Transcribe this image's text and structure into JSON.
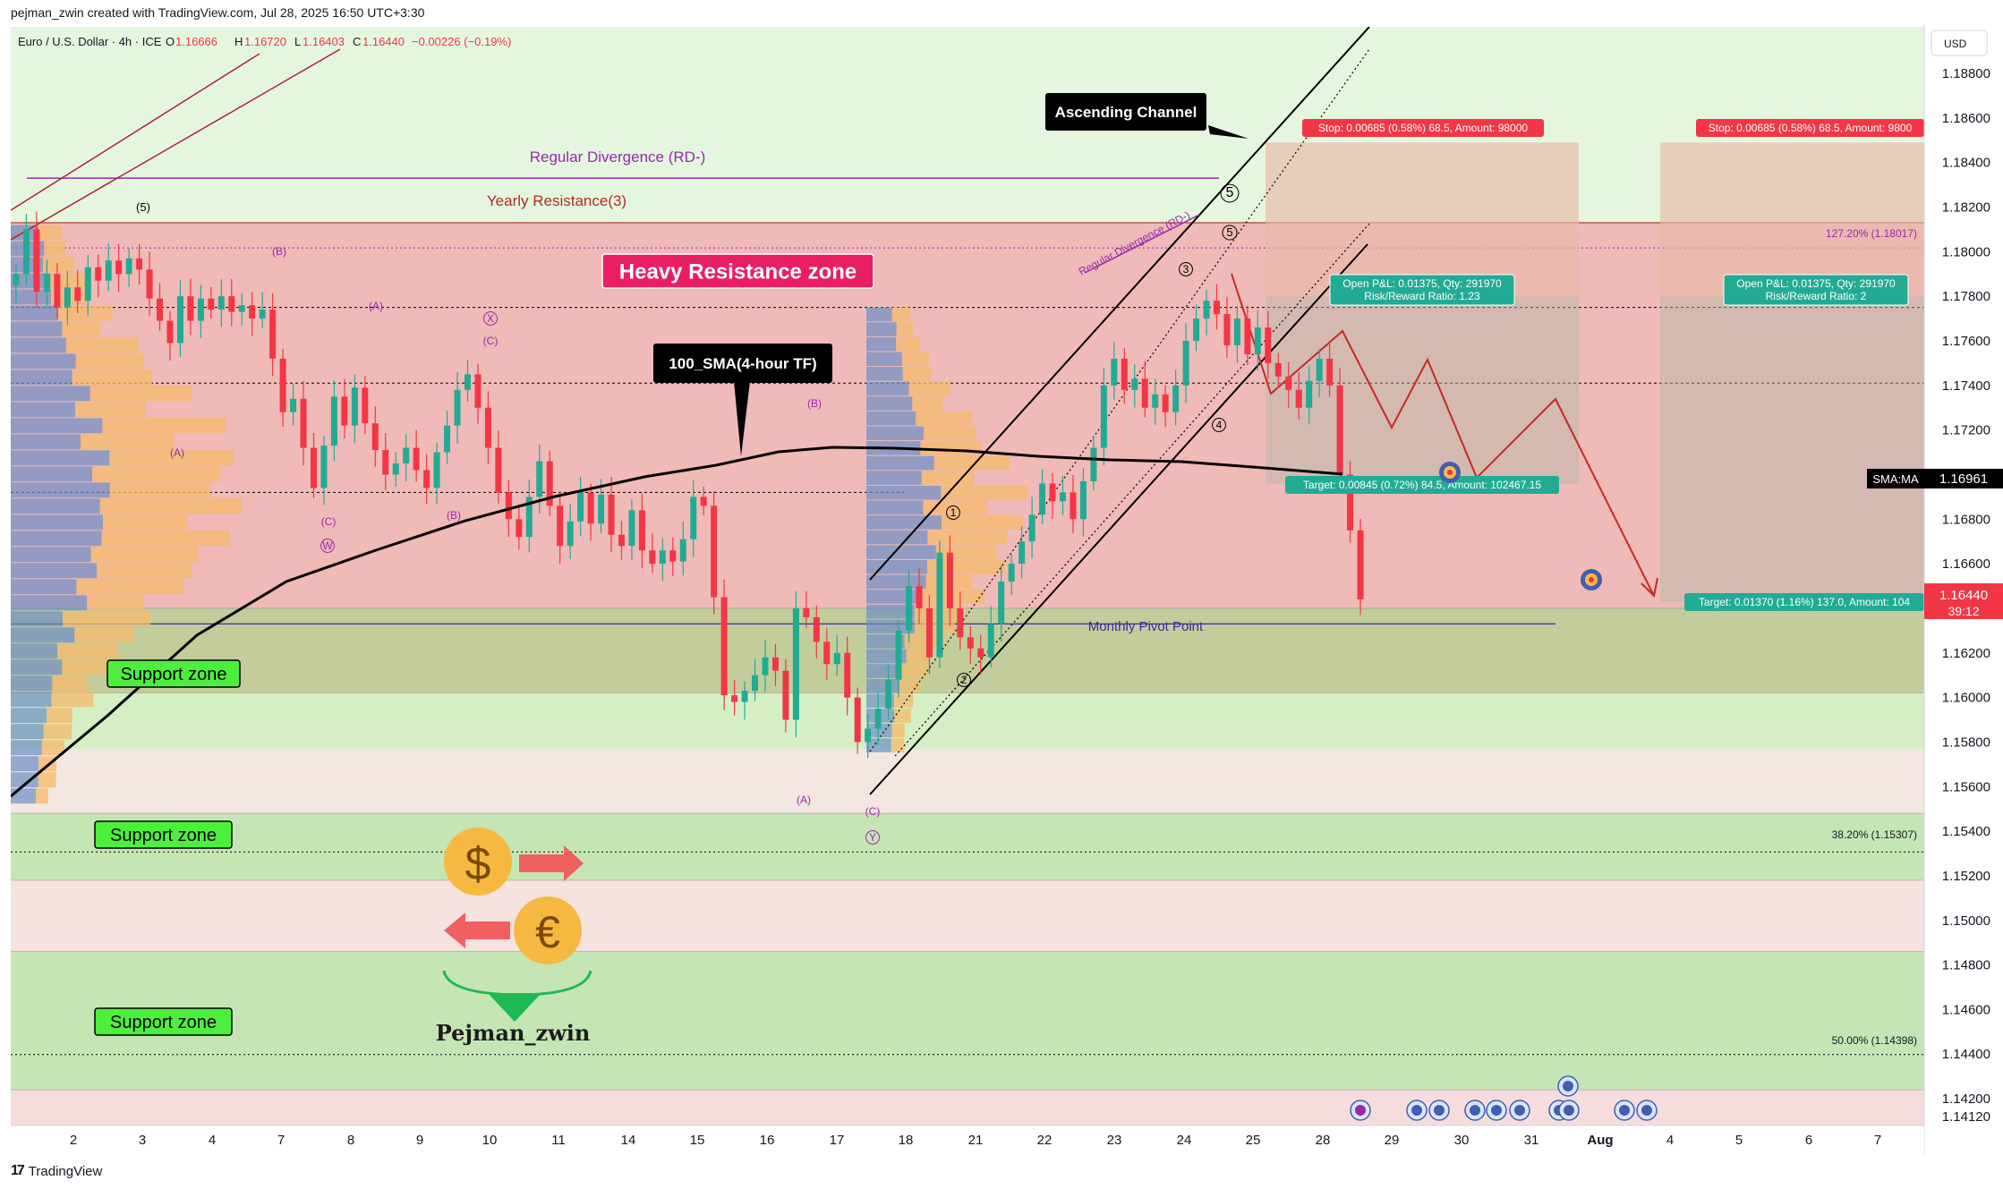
{
  "header": {
    "credit": "pejman_zwin created with TradingView.com, Jul 28, 2025 16:50 UTC+3:30"
  },
  "legend": {
    "symbol": "Euro / U.S. Dollar · 4h · ICE",
    "open_label": "O",
    "open": "1.16666",
    "high_label": "H",
    "high": "1.16720",
    "low_label": "L",
    "low": "1.16403",
    "close_label": "C",
    "close": "1.16440",
    "change": "−0.00226 (−0.19%)"
  },
  "price_axis": {
    "currency": "USD",
    "current_price": "1.16440",
    "countdown": "39:12",
    "sma_label": "SMA:MA",
    "sma_value": "1.16961"
  },
  "footer": {
    "brand": "TradingView"
  },
  "colors": {
    "resistance_zone": "#f0b3b3",
    "support_zone": "#c5e6b4",
    "background_green": "#e4f7de",
    "bull_candle": "#22ab94",
    "bear_candle": "#f23645",
    "volume_profile_blue": "#6c8fc6",
    "volume_profile_orange": "#f5b96b",
    "sma_line": "#000000",
    "channel_line": "#000000",
    "label_red": "#f23645",
    "label_teal": "#22ab94"
  },
  "chart_data": {
    "type": "candlestick",
    "timeframe": "4h",
    "y_range": [
      1.1405,
      1.1905
    ],
    "x_ticks": [
      "2",
      "3",
      "4",
      "7",
      "8",
      "9",
      "10",
      "11",
      "14",
      "15",
      "16",
      "17",
      "18",
      "21",
      "22",
      "23",
      "24",
      "25",
      "28",
      "29",
      "30",
      "31",
      "Aug",
      "4",
      "5",
      "6",
      "7"
    ],
    "y_ticks": [
      "1.18800",
      "1.18600",
      "1.18400",
      "1.18200",
      "1.18000",
      "1.17800",
      "1.17600",
      "1.17400",
      "1.17200",
      "1.17000",
      "1.16800",
      "1.16600",
      "1.16400",
      "1.16200",
      "1.16000",
      "1.15800",
      "1.15600",
      "1.15400",
      "1.15200",
      "1.15000",
      "1.14800",
      "1.14600",
      "1.14400",
      "1.14200",
      "1.14120"
    ],
    "candles_close_path": [
      1.179,
      1.181,
      1.1782,
      1.179,
      1.1775,
      1.1784,
      1.1778,
      1.1793,
      1.1787,
      1.1796,
      1.179,
      1.1797,
      1.1792,
      1.1779,
      1.1769,
      1.1759,
      1.178,
      1.1769,
      1.1779,
      1.1774,
      1.178,
      1.1773,
      1.1776,
      1.177,
      1.1774,
      1.1752,
      1.1728,
      1.1734,
      1.1712,
      1.1694,
      1.1713,
      1.1735,
      1.1722,
      1.1739,
      1.1723,
      1.1711,
      1.17,
      1.1705,
      1.1712,
      1.1702,
      1.1694,
      1.171,
      1.1722,
      1.1738,
      1.1745,
      1.173,
      1.1712,
      1.1692,
      1.168,
      1.1672,
      1.169,
      1.1706,
      1.1686,
      1.1668,
      1.1679,
      1.1692,
      1.1678,
      1.1691,
      1.1673,
      1.1668,
      1.1684,
      1.1666,
      1.166,
      1.1666,
      1.1661,
      1.1671,
      1.169,
      1.1686,
      1.1645,
      1.1601,
      1.1598,
      1.1603,
      1.161,
      1.1618,
      1.1612,
      1.159,
      1.164,
      1.1636,
      1.1625,
      1.1615,
      1.162,
      1.16,
      1.158,
      1.1586,
      1.1595,
      1.1608,
      1.163,
      1.165,
      1.164,
      1.1618,
      1.1665,
      1.164,
      1.1627,
      1.1622,
      1.1618,
      1.1633,
      1.1652,
      1.166,
      1.167,
      1.1682,
      1.1696,
      1.1688,
      1.1692,
      1.168,
      1.1697,
      1.1712,
      1.174,
      1.1752,
      1.1738,
      1.1743,
      1.173,
      1.1736,
      1.1728,
      1.174,
      1.176,
      1.177,
      1.1778,
      1.1772,
      1.1758,
      1.177,
      1.1754,
      1.1766,
      1.175,
      1.1744,
      1.1738,
      1.173,
      1.1742,
      1.1752,
      1.174,
      1.17,
      1.1675,
      1.1644
    ],
    "indicators": [
      {
        "name": "100_SMA(4-hour TF)",
        "type": "line"
      }
    ],
    "levels": [
      {
        "label": "Yearly Resistance(3)",
        "price": 1.1813
      },
      {
        "label": "Monthly Pivot Point",
        "price": 1.1633
      },
      {
        "label": "127.20% (1.18017)",
        "price": 1.18017
      },
      {
        "label": "38.20% (1.15307)",
        "price": 1.15307
      },
      {
        "label": "50.00% (1.14398)",
        "price": 1.14398
      }
    ],
    "zones": [
      {
        "label": "Heavy Resistance zone",
        "from": 1.164,
        "to": 1.1813
      },
      {
        "label": "Support zone",
        "from": 1.1602,
        "to": 1.164
      },
      {
        "label": "Support zone",
        "from": 1.1518,
        "to": 1.1548
      },
      {
        "label": "Support zone",
        "from": 1.1424,
        "to": 1.1486
      }
    ],
    "annotations": [
      "Ascending Channel",
      "Regular Divergence (RD-)",
      "Regular Divergence (RD-)",
      "Heavy Resistance zone",
      "100_SMA(4-hour TF)",
      "Support zone",
      "Support zone",
      "Support zone",
      "Monthly Pivot Point",
      "Yearly Resistance(3)",
      "Pejman_zwin"
    ],
    "wave_labels": [
      "(5)",
      "(A)",
      "(B)",
      "(C)",
      "(A)",
      "(B)",
      "(C)",
      "W",
      "X",
      "(A)",
      "(B)",
      "(C)",
      "Y",
      "1",
      "2",
      "3",
      "4",
      "5",
      "5"
    ],
    "positions": [
      {
        "stop": "Stop: 0.00685 (0.58%) 68.5, Amount: 98000",
        "open": "Open P&L: 0.01375, Qty: 291970",
        "rr": "Risk/Reward Ratio: 1.23",
        "target": "Target: 0.00845 (0.72%) 84.5, Amount: 102467.15"
      },
      {
        "stop": "Stop: 0.00685 (0.58%) 68.5, Amount: 9800",
        "open": "Open P&L: 0.01375, Qty: 291970",
        "rr": "Risk/Reward Ratio: 2",
        "target": "Target: 0.01370 (1.16%) 137.0, Amount: 104"
      }
    ]
  }
}
